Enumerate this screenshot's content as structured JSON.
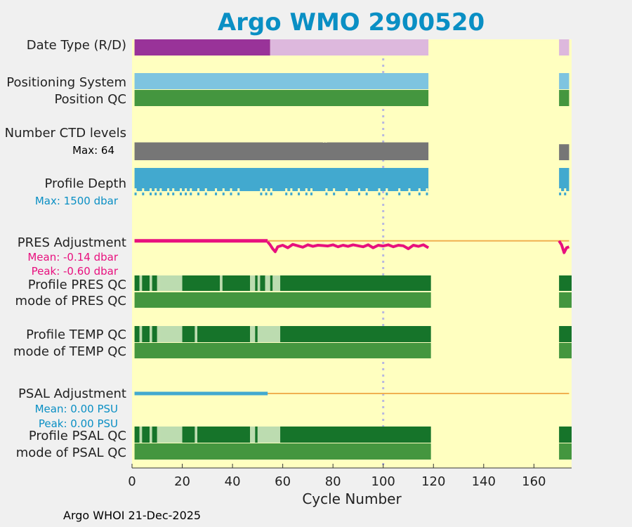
{
  "chart_data": {
    "type": "bar",
    "title": "Argo WMO 2900520",
    "xlabel": "Cycle Number",
    "xlim": [
      0,
      175
    ],
    "x_ticks": [
      "0",
      "20",
      "40",
      "60",
      "80",
      "100",
      "120",
      "140",
      "160"
    ],
    "footer": "Argo WHOI 21-Dec-2025",
    "colors": {
      "plot_bg": "#ffffc0",
      "delayed": "#993399",
      "realtime": "#ddb8dd",
      "positioning": "#7ec4e0",
      "qc_good": "#44963f",
      "qc_dark": "#16742a",
      "qc_light": "#bcdcb0",
      "ctd": "#767676",
      "depth": "#42a9cf",
      "pres_adj": "#e8107e",
      "psal_adj": "#42a9cf",
      "zero_line": "#f0b050",
      "marker": "#b8b8e0",
      "stat_pink": "#e8107e",
      "stat_blue": "#0a8fc4"
    },
    "row_labels": {
      "date_type": "Date Type (R/D)",
      "positioning_system": "Positioning System",
      "position_qc": "Position QC",
      "ctd_levels": "Number CTD levels",
      "profile_depth": "Profile Depth",
      "pres_adjustment": "PRES Adjustment",
      "profile_pres_qc": "Profile PRES QC",
      "mode_pres_qc": "mode of PRES QC",
      "profile_temp_qc": "Profile TEMP QC",
      "mode_temp_qc": "mode of TEMP QC",
      "psal_adjustment": "PSAL Adjustment",
      "profile_psal_qc": "Profile PSAL QC",
      "mode_psal_qc": "mode of PSAL QC"
    },
    "stats": {
      "ctd_max": "Max: 64",
      "depth_max": "Max: 1500 dbar",
      "pres_mean": "Mean: -0.14 dbar",
      "pres_peak": "Peak: -0.60 dbar",
      "psal_mean": "Mean: 0.00 PSU",
      "psal_peak": "Peak: 0.00 PSU"
    },
    "cycle_ranges": [
      [
        1,
        118
      ],
      [
        170,
        174
      ]
    ],
    "vertical_marker_cycle": 100,
    "date_type": [
      {
        "start": 1,
        "end": 55,
        "mode": "D"
      },
      {
        "start": 55,
        "end": 118,
        "mode": "R"
      },
      {
        "start": 170,
        "end": 174,
        "mode": "R"
      }
    ],
    "ctd_levels": {
      "max": 64,
      "segments": [
        {
          "start": 1,
          "end": 118,
          "value": 58
        },
        {
          "start": 170,
          "end": 174,
          "value": 52
        }
      ],
      "dips": [
        76,
        77
      ]
    },
    "profile_depth": {
      "max_dbar": 1500,
      "segments": [
        {
          "start": 1,
          "end": 118,
          "value": 1500
        },
        {
          "start": 170,
          "end": 174,
          "value": 1500
        }
      ],
      "dips": [
        1,
        4,
        7,
        9,
        11,
        14,
        16,
        19,
        21,
        23,
        26,
        29,
        33,
        36,
        39,
        42,
        51,
        53,
        55,
        61,
        63,
        66,
        69,
        71,
        77,
        80,
        85,
        90,
        93,
        98,
        101,
        106,
        110,
        114,
        117,
        170,
        172
      ]
    },
    "pres_adjustment": {
      "zero_until": 54,
      "x": [
        54,
        55,
        56,
        57,
        58,
        60,
        62,
        64,
        66,
        68,
        70,
        72,
        74,
        76,
        78,
        80,
        82,
        84,
        86,
        88,
        90,
        92,
        94,
        96,
        98,
        100,
        102,
        104,
        106,
        108,
        110,
        112,
        114,
        116,
        118
      ],
      "y": [
        -0.05,
        -0.2,
        -0.4,
        -0.55,
        -0.3,
        -0.22,
        -0.35,
        -0.18,
        -0.25,
        -0.32,
        -0.2,
        -0.28,
        -0.22,
        -0.24,
        -0.26,
        -0.2,
        -0.3,
        -0.22,
        -0.28,
        -0.2,
        -0.25,
        -0.3,
        -0.2,
        -0.35,
        -0.22,
        -0.26,
        -0.2,
        -0.3,
        -0.22,
        -0.25,
        -0.4,
        -0.22,
        -0.28,
        -0.2,
        -0.35
      ],
      "x2": [
        170,
        171,
        172,
        173,
        174
      ],
      "y2": [
        0.0,
        -0.2,
        -0.6,
        -0.35,
        -0.3
      ],
      "ylim": [
        -0.9,
        0.1
      ]
    },
    "psal_adjustment": {
      "segment_start": 1,
      "segment_end": 54,
      "value": 0.0
    },
    "profile_pres_qc": [
      {
        "start": 1,
        "end": 3,
        "q": "dark"
      },
      {
        "start": 3,
        "end": 4,
        "q": "light"
      },
      {
        "start": 4,
        "end": 7,
        "q": "dark"
      },
      {
        "start": 7,
        "end": 8,
        "q": "light"
      },
      {
        "start": 8,
        "end": 10,
        "q": "dark"
      },
      {
        "start": 10,
        "end": 11,
        "q": "light"
      },
      {
        "start": 11,
        "end": 20,
        "q": "light"
      },
      {
        "start": 20,
        "end": 35,
        "q": "dark"
      },
      {
        "start": 35,
        "end": 36,
        "q": "light"
      },
      {
        "start": 36,
        "end": 47,
        "q": "dark"
      },
      {
        "start": 47,
        "end": 49,
        "q": "light"
      },
      {
        "start": 49,
        "end": 50,
        "q": "dark"
      },
      {
        "start": 50,
        "end": 51,
        "q": "light"
      },
      {
        "start": 51,
        "end": 53,
        "q": "dark"
      },
      {
        "start": 53,
        "end": 55,
        "q": "light"
      },
      {
        "start": 55,
        "end": 56,
        "q": "dark"
      },
      {
        "start": 56,
        "end": 59,
        "q": "light"
      },
      {
        "start": 59,
        "end": 119,
        "q": "dark"
      },
      {
        "start": 170,
        "end": 175,
        "q": "dark"
      }
    ],
    "profile_temp_qc": [
      {
        "start": 1,
        "end": 3,
        "q": "dark"
      },
      {
        "start": 3,
        "end": 4,
        "q": "light"
      },
      {
        "start": 4,
        "end": 7,
        "q": "dark"
      },
      {
        "start": 7,
        "end": 8,
        "q": "light"
      },
      {
        "start": 8,
        "end": 10,
        "q": "dark"
      },
      {
        "start": 10,
        "end": 11,
        "q": "light"
      },
      {
        "start": 11,
        "end": 20,
        "q": "light"
      },
      {
        "start": 20,
        "end": 25,
        "q": "dark"
      },
      {
        "start": 25,
        "end": 26,
        "q": "light"
      },
      {
        "start": 26,
        "end": 47,
        "q": "dark"
      },
      {
        "start": 47,
        "end": 49,
        "q": "light"
      },
      {
        "start": 49,
        "end": 50,
        "q": "dark"
      },
      {
        "start": 50,
        "end": 59,
        "q": "light"
      },
      {
        "start": 59,
        "end": 119,
        "q": "dark"
      },
      {
        "start": 170,
        "end": 175,
        "q": "dark"
      }
    ],
    "profile_psal_qc": [
      {
        "start": 1,
        "end": 3,
        "q": "dark"
      },
      {
        "start": 3,
        "end": 4,
        "q": "light"
      },
      {
        "start": 4,
        "end": 7,
        "q": "dark"
      },
      {
        "start": 7,
        "end": 8,
        "q": "light"
      },
      {
        "start": 8,
        "end": 10,
        "q": "dark"
      },
      {
        "start": 10,
        "end": 11,
        "q": "light"
      },
      {
        "start": 11,
        "end": 20,
        "q": "light"
      },
      {
        "start": 20,
        "end": 25,
        "q": "dark"
      },
      {
        "start": 25,
        "end": 26,
        "q": "light"
      },
      {
        "start": 26,
        "end": 47,
        "q": "dark"
      },
      {
        "start": 47,
        "end": 49,
        "q": "light"
      },
      {
        "start": 49,
        "end": 50,
        "q": "dark"
      },
      {
        "start": 50,
        "end": 59,
        "q": "light"
      },
      {
        "start": 59,
        "end": 119,
        "q": "dark"
      },
      {
        "start": 170,
        "end": 175,
        "q": "dark"
      }
    ]
  }
}
